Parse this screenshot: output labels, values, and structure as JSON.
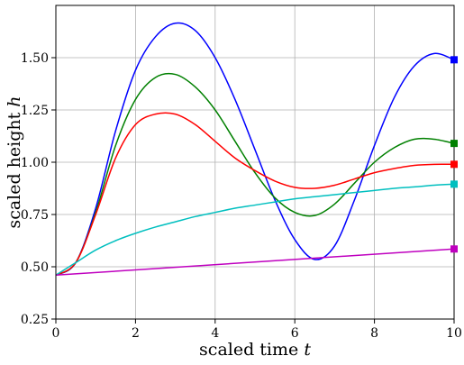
{
  "chart_data": {
    "type": "line",
    "xlabel_text": "scaled time ",
    "xlabel_var": "t",
    "ylabel_text": "scaled height ",
    "ylabel_var": "h",
    "xlim": [
      0,
      10
    ],
    "ylim": [
      0.25,
      1.75
    ],
    "xticks": [
      0,
      2,
      4,
      6,
      8,
      10
    ],
    "xtick_labels": [
      "0",
      "2",
      "4",
      "6",
      "8",
      "10"
    ],
    "yticks": [
      0.25,
      0.5,
      0.75,
      1.0,
      1.25,
      1.5
    ],
    "ytick_labels": [
      "0.25",
      "0.50",
      "0.75",
      "1.00",
      "1.25",
      "1.50"
    ],
    "grid": true,
    "series": [
      {
        "color": "#0000ff",
        "end_marker": true,
        "points": [
          [
            0,
            0.46
          ],
          [
            0.5,
            0.52
          ],
          [
            1,
            0.78
          ],
          [
            1.5,
            1.15
          ],
          [
            2,
            1.44
          ],
          [
            2.5,
            1.6
          ],
          [
            3,
            1.665
          ],
          [
            3.5,
            1.63
          ],
          [
            4,
            1.5
          ],
          [
            4.5,
            1.3
          ],
          [
            5,
            1.06
          ],
          [
            5.5,
            0.82
          ],
          [
            6,
            0.63
          ],
          [
            6.5,
            0.535
          ],
          [
            7,
            0.6
          ],
          [
            7.5,
            0.82
          ],
          [
            8,
            1.08
          ],
          [
            8.5,
            1.31
          ],
          [
            9,
            1.46
          ],
          [
            9.5,
            1.52
          ],
          [
            10,
            1.49
          ]
        ]
      },
      {
        "color": "#008000",
        "end_marker": true,
        "points": [
          [
            0,
            0.46
          ],
          [
            0.5,
            0.52
          ],
          [
            1,
            0.76
          ],
          [
            1.5,
            1.08
          ],
          [
            2,
            1.3
          ],
          [
            2.5,
            1.405
          ],
          [
            3,
            1.42
          ],
          [
            3.5,
            1.36
          ],
          [
            4,
            1.25
          ],
          [
            4.5,
            1.1
          ],
          [
            5,
            0.95
          ],
          [
            5.5,
            0.83
          ],
          [
            6,
            0.76
          ],
          [
            6.5,
            0.745
          ],
          [
            7,
            0.8
          ],
          [
            7.5,
            0.9
          ],
          [
            8,
            1.0
          ],
          [
            8.5,
            1.07
          ],
          [
            9,
            1.11
          ],
          [
            9.5,
            1.11
          ],
          [
            10,
            1.09
          ]
        ]
      },
      {
        "color": "#ff0000",
        "end_marker": true,
        "points": [
          [
            0,
            0.46
          ],
          [
            0.5,
            0.52
          ],
          [
            1,
            0.75
          ],
          [
            1.5,
            1.02
          ],
          [
            2,
            1.18
          ],
          [
            2.5,
            1.23
          ],
          [
            3,
            1.23
          ],
          [
            3.5,
            1.18
          ],
          [
            4,
            1.1
          ],
          [
            4.5,
            1.02
          ],
          [
            5,
            0.96
          ],
          [
            5.5,
            0.91
          ],
          [
            6,
            0.88
          ],
          [
            6.5,
            0.875
          ],
          [
            7,
            0.89
          ],
          [
            7.5,
            0.92
          ],
          [
            8,
            0.95
          ],
          [
            8.5,
            0.97
          ],
          [
            9,
            0.985
          ],
          [
            9.5,
            0.99
          ],
          [
            10,
            0.99
          ]
        ]
      },
      {
        "color": "#00bfbf",
        "end_marker": true,
        "points": [
          [
            0,
            0.46
          ],
          [
            0.5,
            0.52
          ],
          [
            1,
            0.58
          ],
          [
            1.5,
            0.625
          ],
          [
            2,
            0.66
          ],
          [
            2.5,
            0.69
          ],
          [
            3,
            0.715
          ],
          [
            3.5,
            0.74
          ],
          [
            4,
            0.76
          ],
          [
            4.5,
            0.78
          ],
          [
            5,
            0.795
          ],
          [
            5.5,
            0.81
          ],
          [
            6,
            0.825
          ],
          [
            6.5,
            0.835
          ],
          [
            7,
            0.845
          ],
          [
            7.5,
            0.855
          ],
          [
            8,
            0.865
          ],
          [
            8.5,
            0.875
          ],
          [
            9,
            0.882
          ],
          [
            9.5,
            0.89
          ],
          [
            10,
            0.895
          ]
        ]
      },
      {
        "color": "#bf00bf",
        "end_marker": true,
        "points": [
          [
            0,
            0.46
          ],
          [
            10,
            0.585
          ]
        ]
      }
    ]
  }
}
